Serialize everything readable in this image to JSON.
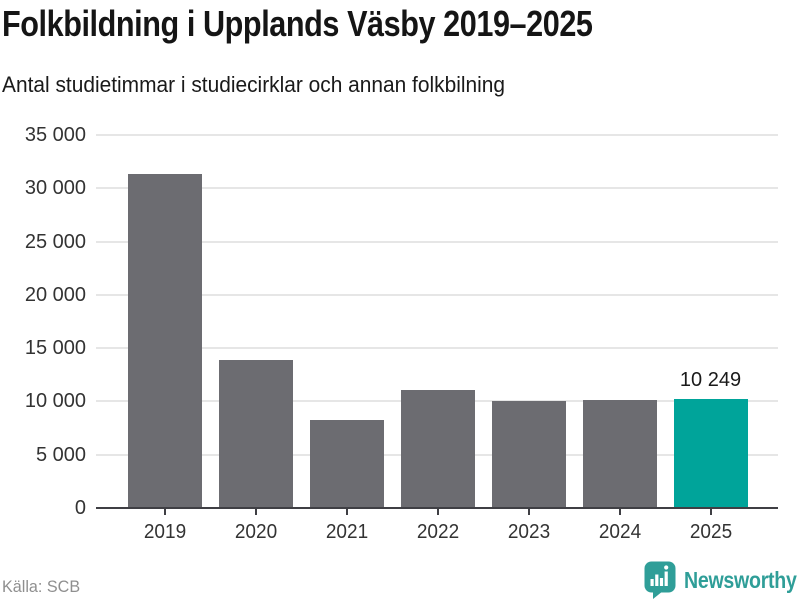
{
  "header": {
    "title": "Folkbildning i Upplands Väsby 2019–2025",
    "subtitle": "Antal studietimmar i studiecirklar och annan folkbilning"
  },
  "chart_data": {
    "type": "bar",
    "title": "Folkbildning i Upplands Väsby 2019–2025",
    "subtitle": "Antal studietimmar i studiecirklar och annan folkbilning",
    "categories": [
      "2019",
      "2020",
      "2021",
      "2022",
      "2023",
      "2024",
      "2025"
    ],
    "values": [
      31300,
      13900,
      8300,
      11100,
      10000,
      10150,
      10249
    ],
    "ylim": [
      0,
      35000
    ],
    "yticks": [
      {
        "label": "0",
        "value": 0
      },
      {
        "label": "5 000",
        "value": 5000
      },
      {
        "label": "10 000",
        "value": 10000
      },
      {
        "label": "15 000",
        "value": 15000
      },
      {
        "label": "20 000",
        "value": 20000
      },
      {
        "label": "25 000",
        "value": 25000
      },
      {
        "label": "30 000",
        "value": 30000
      },
      {
        "label": "35 000",
        "value": 35000
      }
    ],
    "grid": "horizontal",
    "legend": "none",
    "highlight_index": 6,
    "annotations": [
      {
        "index": 6,
        "text": "10 249"
      }
    ]
  },
  "footer": {
    "source": "Källa: SCB",
    "brand": "Newsworthy"
  },
  "colors": {
    "bar": "#6c6c71",
    "highlight": "#00a49a",
    "grid": "#e6e6e6",
    "axis": "#3f3f44",
    "brand": "#2f9e98",
    "title": "#151515",
    "tick_label": "#333333",
    "data_label": "#1a1a1a",
    "source": "#8f8f8f"
  }
}
